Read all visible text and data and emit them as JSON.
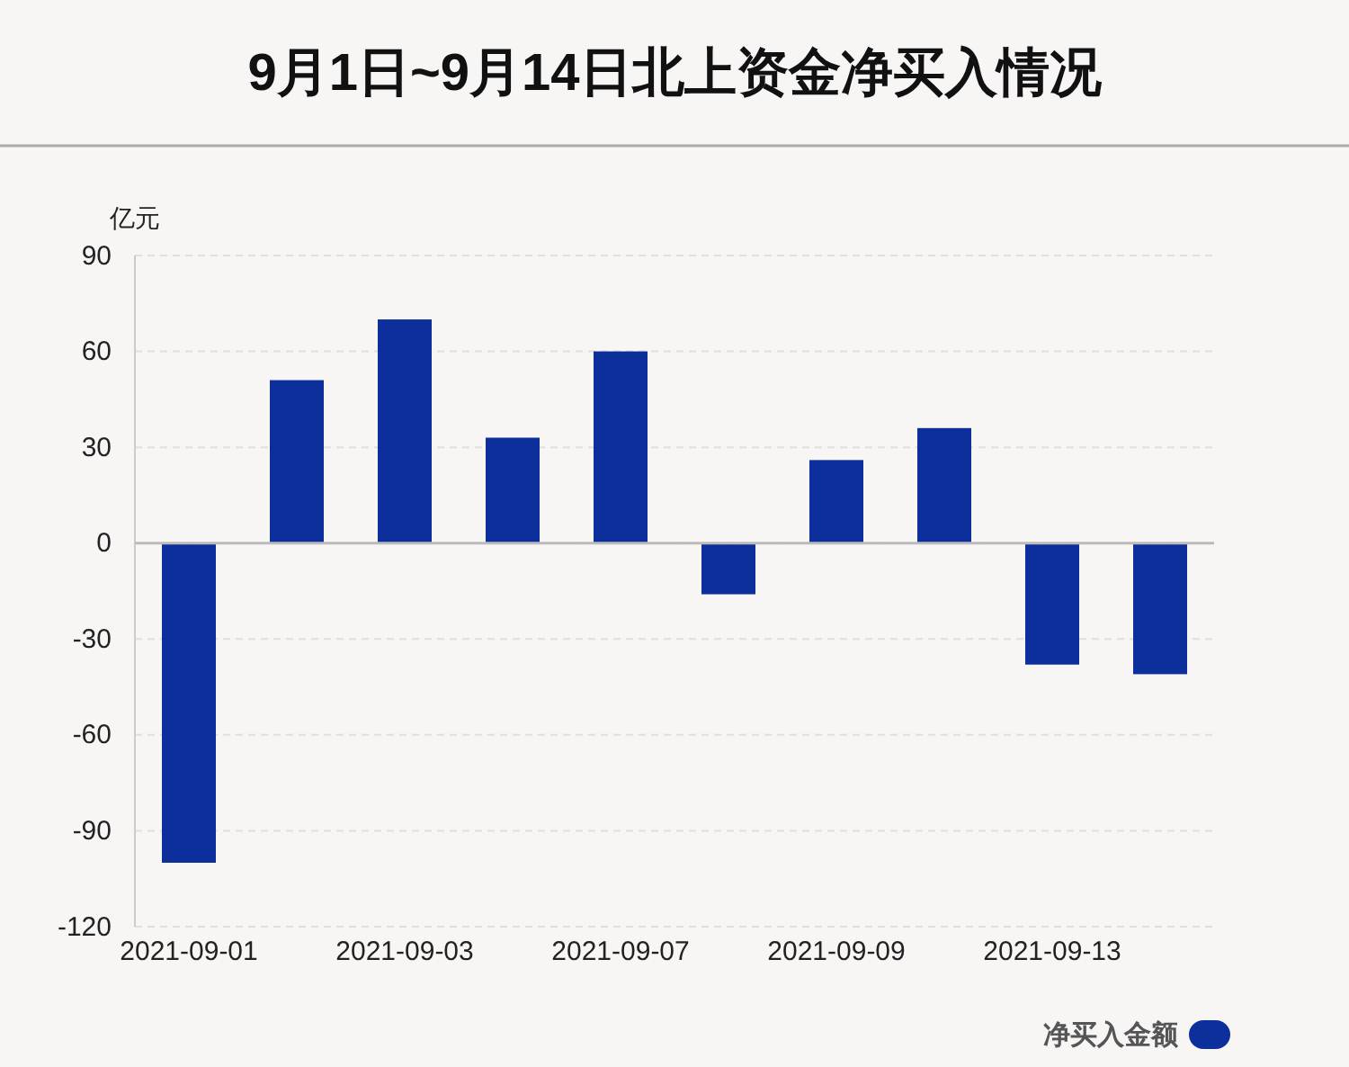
{
  "chart_data": {
    "type": "bar",
    "title": "9月1日~9月14日北上资金净买入情况",
    "ylabel": "亿元",
    "categories": [
      "2021-09-01",
      null,
      "2021-09-03",
      null,
      "2021-09-07",
      null,
      "2021-09-09",
      null,
      "2021-09-13",
      null
    ],
    "series": [
      {
        "name": "净买入金额",
        "color": "#0c2f9c",
        "values": [
          -100,
          51,
          70,
          33,
          60,
          -16,
          26,
          36,
          -38,
          -41
        ]
      }
    ],
    "ylim": [
      -120,
      90
    ],
    "yticks": [
      -120,
      -90,
      -60,
      -30,
      0,
      30,
      60,
      90
    ],
    "grid": "y",
    "legend": "bottom right"
  }
}
